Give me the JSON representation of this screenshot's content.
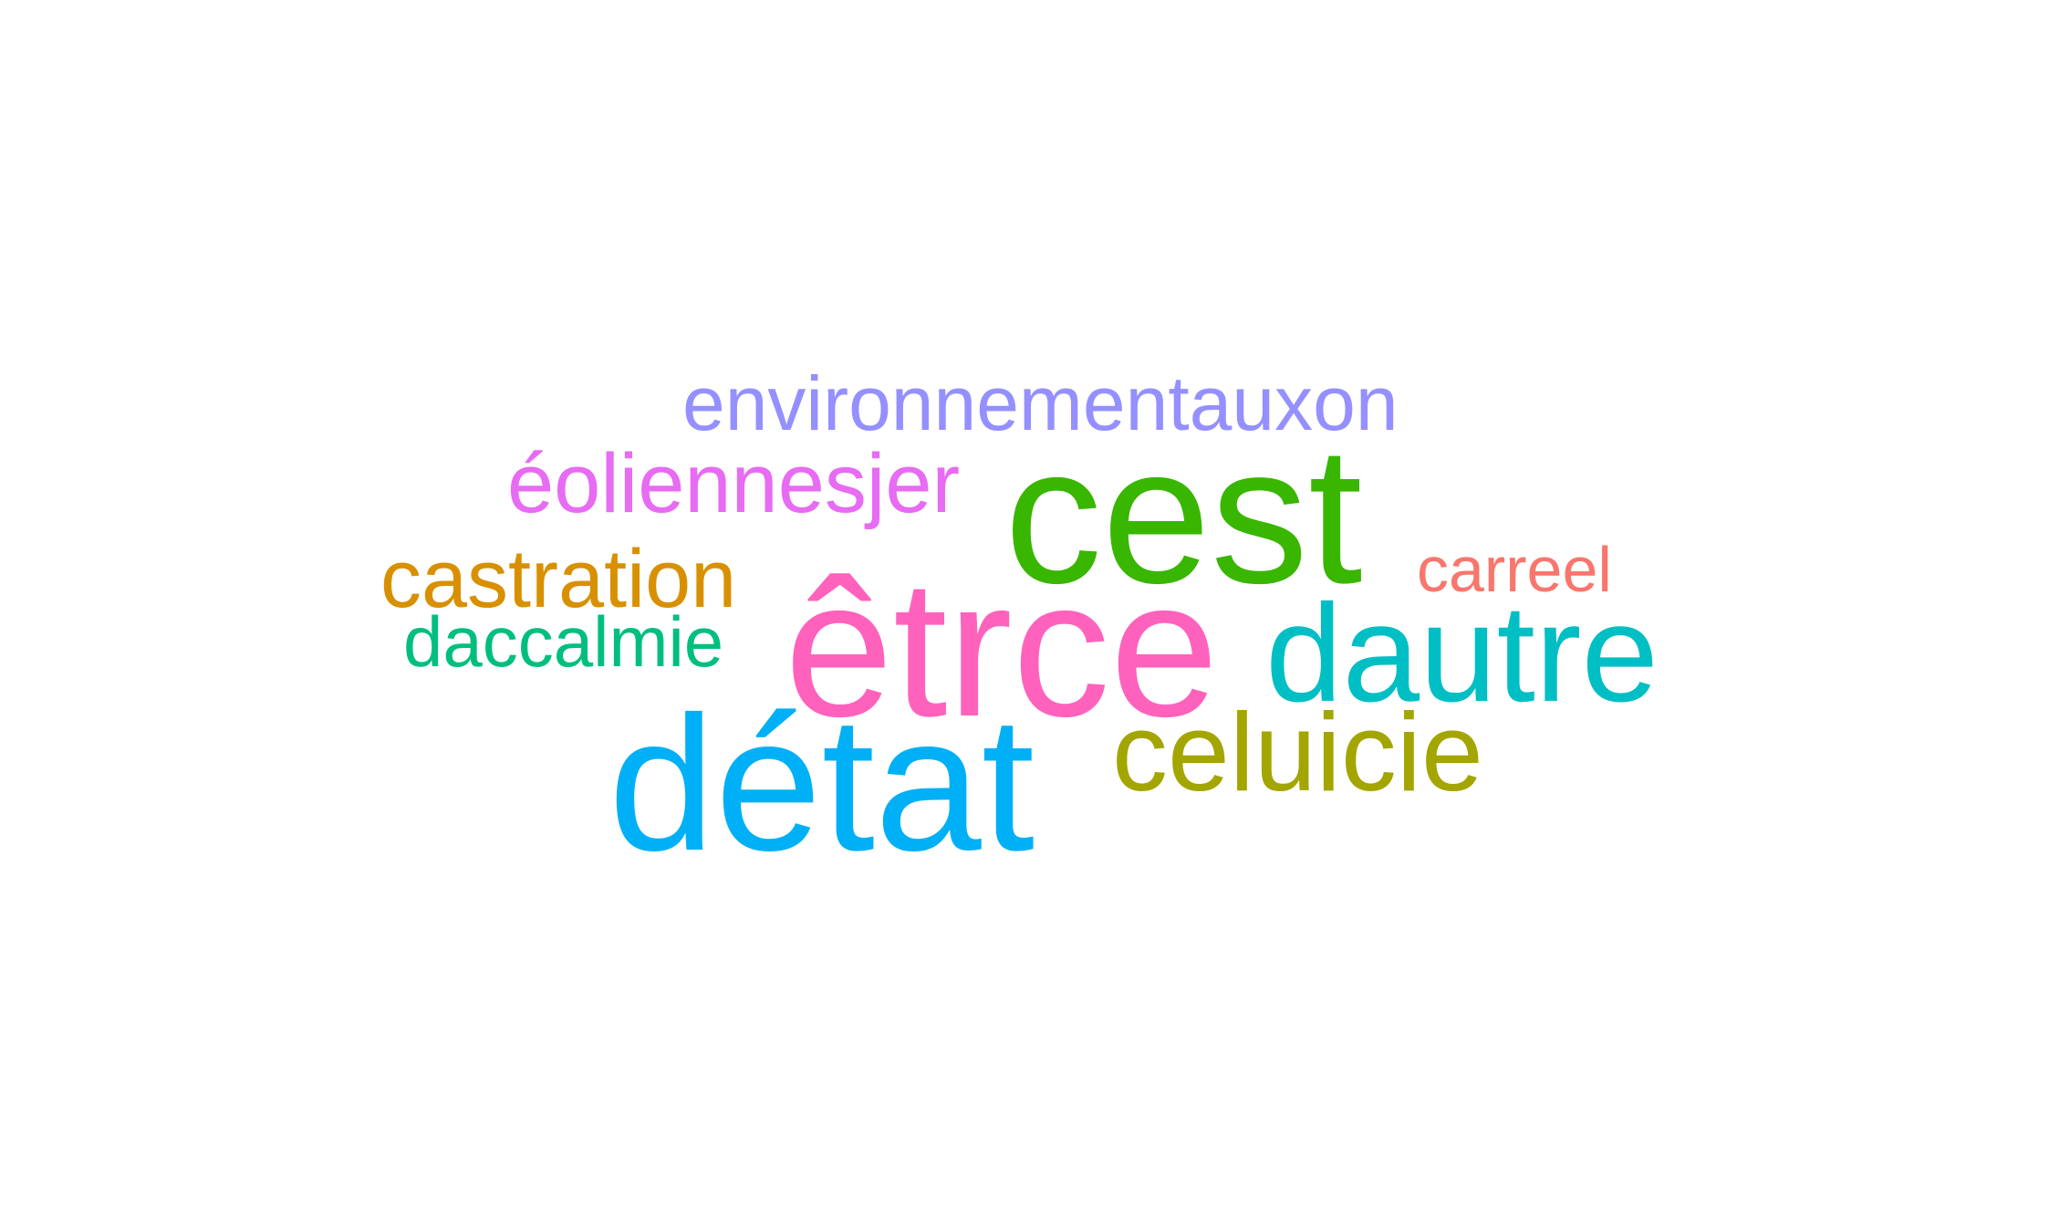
{
  "wordcloud": {
    "words": [
      {
        "text": "environnementauxon",
        "color": "#9590FF"
      },
      {
        "text": "éoliennesjer",
        "color": "#E76BF3"
      },
      {
        "text": "cest",
        "color": "#39B600"
      },
      {
        "text": "castration",
        "color": "#D89000"
      },
      {
        "text": "carreel",
        "color": "#F8766D"
      },
      {
        "text": "êtrce",
        "color": "#FF62BC"
      },
      {
        "text": "daccalmie",
        "color": "#00BF7D"
      },
      {
        "text": "dautre",
        "color": "#00BFC4"
      },
      {
        "text": "détat",
        "color": "#00B0F6"
      },
      {
        "text": "celuicie",
        "color": "#A3A500"
      }
    ]
  }
}
